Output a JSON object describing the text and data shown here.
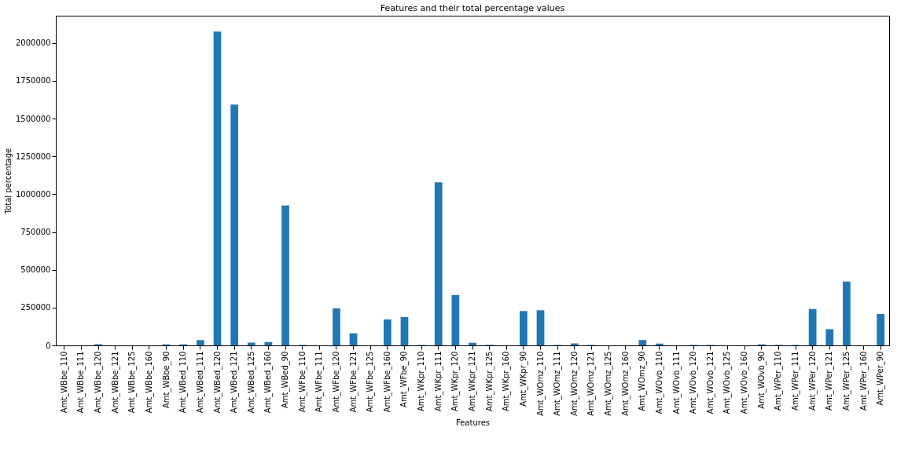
{
  "chart_data": {
    "type": "bar",
    "title": "Features and their total percentage values",
    "xlabel": "Features",
    "ylabel": "Total percentage",
    "color": "#1f77b4",
    "categories": [
      "Amt_WBbe_110",
      "Amt_WBbe_111",
      "Amt_WBbe_120",
      "Amt_WBbe_121",
      "Amt_WBbe_125",
      "Amt_WBbe_160",
      "Amt_WBbe_90",
      "Amt_WBed_110",
      "Amt_WBed_111",
      "Amt_WBed_120",
      "Amt_WBed_121",
      "Amt_WBed_125",
      "Amt_WBed_160",
      "Amt_WBed_90",
      "Amt_WFbe_110",
      "Amt_WFbe_111",
      "Amt_WFbe_120",
      "Amt_WFbe_121",
      "Amt_WFbe_125",
      "Amt_WFbe_160",
      "Amt_WFbe_90",
      "Amt_WKpr_110",
      "Amt_WKpr_111",
      "Amt_WKpr_120",
      "Amt_WKpr_121",
      "Amt_WKpr_125",
      "Amt_WKpr_160",
      "Amt_WKpr_90",
      "Amt_WOmz_110",
      "Amt_WOmz_111",
      "Amt_WOmz_120",
      "Amt_WOmz_121",
      "Amt_WOmz_125",
      "Amt_WOmz_160",
      "Amt_WOmz_90",
      "Amt_WOvb_110",
      "Amt_WOvb_111",
      "Amt_WOvb_120",
      "Amt_WOvb_121",
      "Amt_WOvb_125",
      "Amt_WOvb_160",
      "Amt_WOvb_90",
      "Amt_WPer_110",
      "Amt_WPer_111",
      "Amt_WPer_120",
      "Amt_WPer_121",
      "Amt_WPer_125",
      "Amt_WPer_160",
      "Amt_WPer_90"
    ],
    "values": [
      0,
      0,
      8000,
      0,
      0,
      0,
      7000,
      7000,
      35000,
      2075000,
      1592000,
      18000,
      22000,
      925000,
      3000,
      0,
      245000,
      80000,
      0,
      172000,
      187000,
      3000,
      1078000,
      333000,
      17000,
      4000,
      0,
      227000,
      232000,
      3000,
      13000,
      3000,
      0,
      0,
      35000,
      12000,
      0,
      3000,
      3000,
      0,
      0,
      7000,
      3000,
      3000,
      241000,
      107000,
      422000,
      0,
      208000
    ],
    "ylim": [
      0,
      2180000
    ],
    "yticks": [
      0,
      250000,
      500000,
      750000,
      1000000,
      1250000,
      1500000,
      1750000,
      2000000
    ],
    "grid": false
  }
}
